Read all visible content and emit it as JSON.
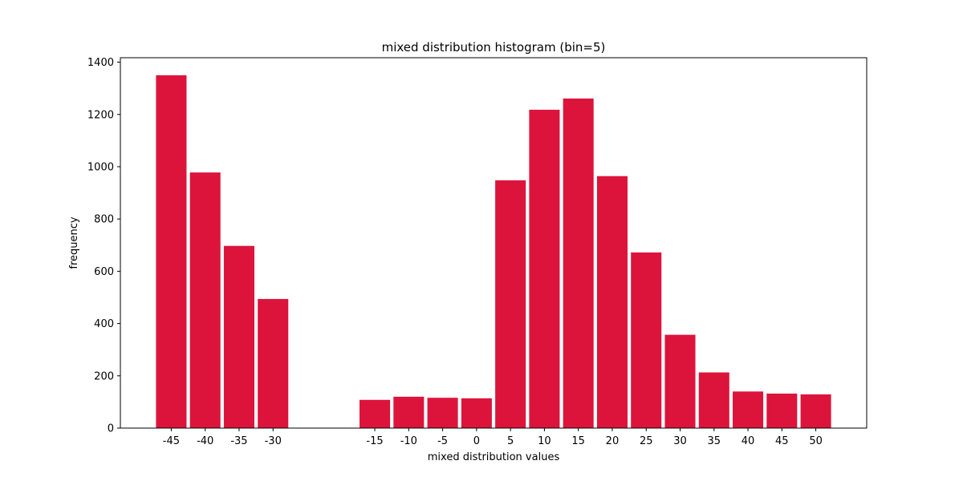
{
  "chart_data": {
    "type": "bar",
    "title": "mixed distribution histogram (bin=5)",
    "xlabel": "mixed distribution values",
    "ylabel": "frequency",
    "bar_color": "#dc143c",
    "bin_width": 5,
    "xlim": [
      -52.5,
      57.5
    ],
    "ylim": [
      0,
      1417
    ],
    "x_ticks": [
      -45,
      -40,
      -35,
      -30,
      -15,
      -10,
      -5,
      0,
      5,
      10,
      15,
      20,
      25,
      30,
      35,
      40,
      45,
      50
    ],
    "y_ticks": [
      0,
      200,
      400,
      600,
      800,
      1000,
      1200,
      1400
    ],
    "categories": [
      "-45",
      "-40",
      "-35",
      "-30",
      "-15",
      "-10",
      "-5",
      "0",
      "5",
      "10",
      "15",
      "20",
      "25",
      "30",
      "35",
      "40",
      "45",
      "50"
    ],
    "x": [
      -45,
      -40,
      -35,
      -30,
      -15,
      -10,
      -5,
      0,
      5,
      10,
      15,
      20,
      25,
      30,
      35,
      40,
      45,
      50
    ],
    "values": [
      1350,
      978,
      697,
      494,
      108,
      120,
      116,
      114,
      948,
      1218,
      1261,
      964,
      672,
      357,
      213,
      140,
      132,
      129
    ],
    "grid": false,
    "legend": false
  }
}
